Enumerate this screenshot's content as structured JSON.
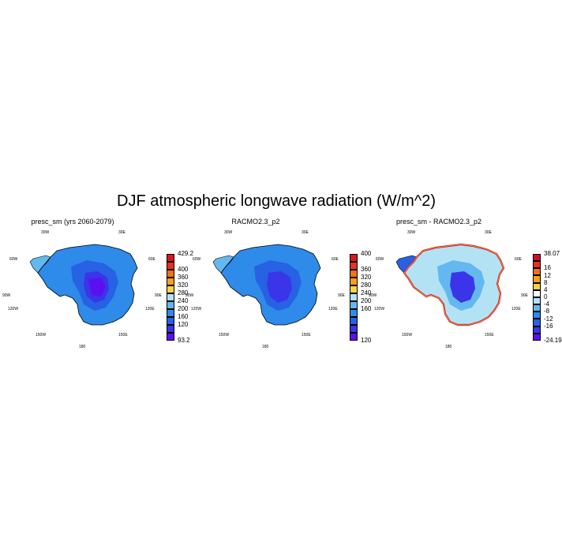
{
  "title": "DJF atmospheric longwave radiation (W/m^2)",
  "lon_labels": {
    "w30": "30W",
    "e30": "30E",
    "w60": "60W",
    "e60": "60E",
    "w90": "90W",
    "e90": "90E",
    "w120": "120W",
    "e120": "120E",
    "w150": "150W",
    "e150": "150E",
    "d180": "180"
  },
  "panels": [
    {
      "title": "presc_sm (yrs 2060-2079)",
      "colorbar_colors": [
        "#d7191c",
        "#e8311e",
        "#f2701e",
        "#f99f1f",
        "#fdd249",
        "#b4e2f5",
        "#63b8ef",
        "#2e8be9",
        "#2761e4",
        "#3a35e8",
        "#5b10f2"
      ],
      "colorbar_ticks": [
        "429.2",
        "400",
        "360",
        "320",
        "280",
        "240",
        "200",
        "160",
        "120",
        "93.2"
      ]
    },
    {
      "title": "RACMO2.3_p2",
      "colorbar_colors": [
        "#d7191c",
        "#e8311e",
        "#f2701e",
        "#f99f1f",
        "#fdd249",
        "#b4e2f5",
        "#63b8ef",
        "#2e8be9",
        "#2761e4",
        "#3a35e8",
        "#5b10f2"
      ],
      "colorbar_ticks": [
        "400",
        "360",
        "320",
        "280",
        "240",
        "200",
        "160",
        "120"
      ]
    },
    {
      "title": "presc_sm - RACMO2.3_p2",
      "colorbar_colors": [
        "#c8102e",
        "#e8311e",
        "#f2701e",
        "#f99f1f",
        "#fdd249",
        "#ffffff",
        "#b4e2f5",
        "#63b8ef",
        "#2e8be9",
        "#2761e4",
        "#3a35e8",
        "#5b10f2"
      ],
      "colorbar_ticks": [
        "38.07",
        "16",
        "12",
        "8",
        "4",
        "0",
        "-4",
        "-8",
        "-12",
        "-16",
        "-24.19"
      ]
    }
  ]
}
